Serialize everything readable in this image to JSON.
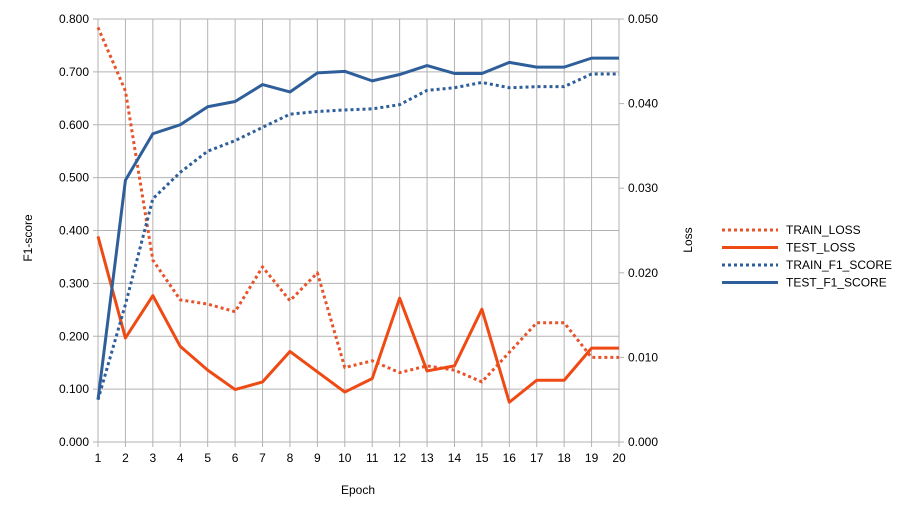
{
  "chart_data": {
    "type": "line",
    "xlabel": "Epoch",
    "ylabel": "F1-score",
    "y2label": "Loss",
    "x": [
      1,
      2,
      3,
      4,
      5,
      6,
      7,
      8,
      9,
      10,
      11,
      12,
      13,
      14,
      15,
      16,
      17,
      18,
      19,
      20
    ],
    "ylim": [
      0,
      0.8
    ],
    "y2lim": [
      0,
      0.05
    ],
    "y_ticks": [
      "0.000",
      "0.100",
      "0.200",
      "0.300",
      "0.400",
      "0.500",
      "0.600",
      "0.700",
      "0.800"
    ],
    "y2_ticks": [
      "0.000",
      "0.010",
      "0.020",
      "0.030",
      "0.040",
      "0.050"
    ],
    "grid": true,
    "legend_position": "right",
    "series": [
      {
        "name": "TRAIN_LOSS",
        "axis": "right",
        "style": "dotted",
        "color": "#e8532a",
        "values": [
          0.049,
          0.0415,
          0.0215,
          0.0168,
          0.0163,
          0.0154,
          0.0207,
          0.0167,
          0.02,
          0.0088,
          0.0096,
          0.0082,
          0.009,
          0.0085,
          0.0071,
          0.0106,
          0.0141,
          0.0141,
          0.01,
          0.01
        ]
      },
      {
        "name": "TEST_LOSS",
        "axis": "right",
        "style": "solid",
        "color": "#f04a14",
        "values": [
          0.0243,
          0.0123,
          0.0173,
          0.0113,
          0.0085,
          0.0062,
          0.0071,
          0.0107,
          0.0083,
          0.0059,
          0.0075,
          0.017,
          0.0084,
          0.009,
          0.0157,
          0.0047,
          0.0073,
          0.0073,
          0.0111,
          0.0111
        ]
      },
      {
        "name": "TRAIN_F1_SCORE",
        "axis": "left",
        "style": "dotted",
        "color": "#2f5f9a",
        "values": [
          0.08,
          0.26,
          0.46,
          0.51,
          0.55,
          0.57,
          0.595,
          0.62,
          0.625,
          0.628,
          0.63,
          0.638,
          0.665,
          0.67,
          0.68,
          0.67,
          0.672,
          0.672,
          0.696,
          0.696
        ]
      },
      {
        "name": "TEST_F1_SCORE",
        "axis": "left",
        "style": "solid",
        "color": "#2f5f9a",
        "values": [
          0.08,
          0.495,
          0.583,
          0.6,
          0.634,
          0.644,
          0.676,
          0.662,
          0.698,
          0.701,
          0.683,
          0.695,
          0.712,
          0.697,
          0.697,
          0.718,
          0.709,
          0.709,
          0.726,
          0.726
        ]
      }
    ]
  }
}
